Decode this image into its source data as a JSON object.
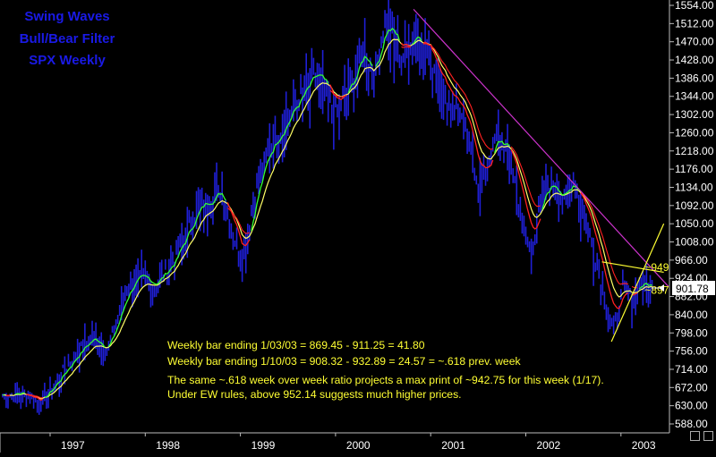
{
  "chart_data": {
    "type": "bar",
    "title_lines": [
      "Swing Waves",
      "Bull/Bear Filter",
      "SPX Weekly"
    ],
    "y_ticks": [
      "1554.00",
      "1512.00",
      "1470.00",
      "1428.00",
      "1386.00",
      "1344.00",
      "1302.00",
      "1260.00",
      "1218.00",
      "1176.00",
      "1134.00",
      "1092.00",
      "1050.00",
      "1008.00",
      "966.00",
      "924.00",
      "882.00",
      "840.00",
      "798.00",
      "756.00",
      "714.00",
      "672.00",
      "630.00",
      "588.00"
    ],
    "ylim": [
      588,
      1554
    ],
    "x_ticks": [
      "1997",
      "1998",
      "1999",
      "2000",
      "2001",
      "2002",
      "2003"
    ],
    "xlim": [
      1996.2,
      2003.5
    ],
    "last_price_label": "901.78",
    "last_price": 901.78,
    "annotations": [
      {
        "text": "~949",
        "x": 2002.95,
        "y": 949
      },
      {
        "text": "~897",
        "x": 2002.95,
        "y": 897
      }
    ],
    "notes": [
      "Weekly bar ending 1/03/03 = 869.45 - 911.25 = 41.80",
      "Weekly bar ending 1/10/03 = 908.32 - 932.89 = 24.57 = ~.618 prev. week",
      "The same ~.618 week over week ratio projects a max print of ~942.75 for this week (1/17).",
      "Under EW rules, above 952.14 suggests much higher prices."
    ],
    "price_anchors": [
      [
        1996.2,
        655
      ],
      [
        1996.4,
        660
      ],
      [
        1996.6,
        640
      ],
      [
        1996.8,
        700
      ],
      [
        1997.0,
        760
      ],
      [
        1997.15,
        790
      ],
      [
        1997.3,
        760
      ],
      [
        1997.5,
        900
      ],
      [
        1997.6,
        930
      ],
      [
        1997.8,
        910
      ],
      [
        1998.0,
        970
      ],
      [
        1998.25,
        1090
      ],
      [
        1998.5,
        1130
      ],
      [
        1998.6,
        1050
      ],
      [
        1998.72,
        960
      ],
      [
        1998.85,
        1130
      ],
      [
        1999.0,
        1230
      ],
      [
        1999.25,
        1320
      ],
      [
        1999.5,
        1400
      ],
      [
        1999.7,
        1310
      ],
      [
        1999.85,
        1370
      ],
      [
        2000.0,
        1460
      ],
      [
        2000.1,
        1390
      ],
      [
        2000.22,
        1530
      ],
      [
        2000.4,
        1440
      ],
      [
        2000.55,
        1500
      ],
      [
        2000.7,
        1440
      ],
      [
        2000.85,
        1350
      ],
      [
        2001.0,
        1320
      ],
      [
        2001.15,
        1200
      ],
      [
        2001.22,
        1130
      ],
      [
        2001.4,
        1260
      ],
      [
        2001.55,
        1200
      ],
      [
        2001.68,
        1040
      ],
      [
        2001.75,
        990
      ],
      [
        2001.9,
        1140
      ],
      [
        2002.0,
        1150
      ],
      [
        2002.1,
        1100
      ],
      [
        2002.2,
        1160
      ],
      [
        2002.35,
        1050
      ],
      [
        2002.45,
        960
      ],
      [
        2002.55,
        860
      ],
      [
        2002.62,
        800
      ],
      [
        2002.72,
        910
      ],
      [
        2002.82,
        880
      ],
      [
        2002.9,
        920
      ],
      [
        2003.03,
        901.78
      ]
    ],
    "series": [
      {
        "name": "",
        "color": "#1f1fd6",
        "kind": "weekly-bars"
      },
      {
        "name": "",
        "color": "#33ff33",
        "kind": "fast-average"
      },
      {
        "name": "",
        "color": "#ffff66",
        "kind": "slow-average"
      },
      {
        "name": "",
        "color": "#ff2020",
        "kind": "bear-average"
      }
    ],
    "trendlines": [
      {
        "color": "#cc33cc",
        "from": [
          2000.52,
          1545
        ],
        "to": [
          2003.2,
          905
        ]
      },
      {
        "color": "#ffff33",
        "from": [
          2002.6,
          778
        ],
        "to": [
          2003.15,
          1050
        ]
      },
      {
        "color": "#ffff33",
        "from": [
          2002.5,
          962
        ],
        "to": [
          2003.15,
          938
        ]
      }
    ],
    "grid": false,
    "background": "#000000"
  }
}
